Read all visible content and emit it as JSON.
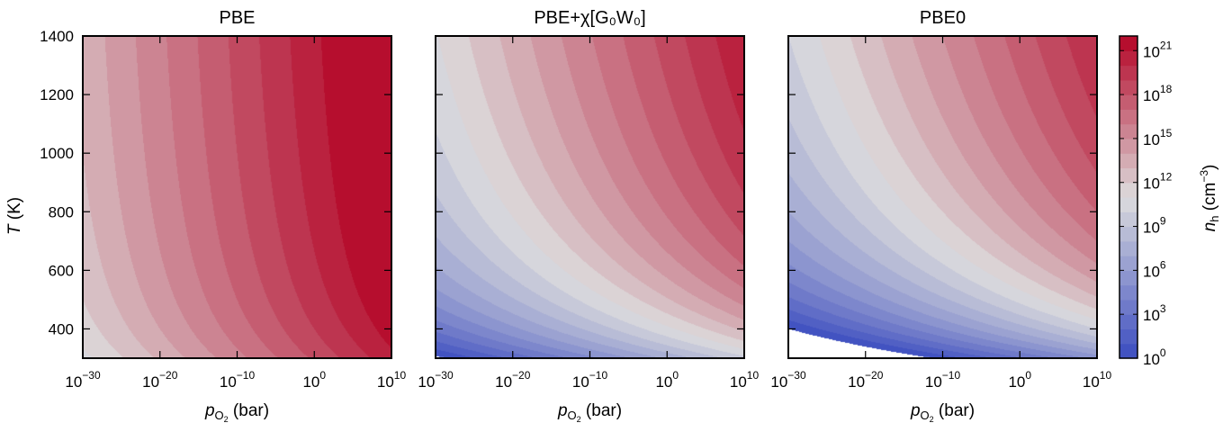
{
  "chart_data": {
    "type": "heatmap",
    "shared_y_axis": {
      "label": "T (K)",
      "label_var": "T",
      "label_unit": "(K)",
      "range": [
        300,
        1400
      ],
      "ticks": [
        400,
        600,
        800,
        1000,
        1200,
        1400
      ]
    },
    "shared_x_axis": {
      "label": "p_O2 (bar)",
      "label_var": "p",
      "label_sub": "O",
      "label_subsub": "2",
      "label_unit": "(bar)",
      "scale": "log",
      "range_exponent": [
        -30,
        10
      ],
      "tick_exponents": [
        -30,
        -20,
        -10,
        0,
        10
      ],
      "tick_base": "10"
    },
    "colorbar": {
      "label": "n_h (cm^-3)",
      "label_var": "n",
      "label_sub": "h",
      "label_unit_pre": "(cm",
      "label_unit_exp": "−3",
      "label_unit_post": ")",
      "scale": "log",
      "tick_base": "10",
      "tick_exponents": [
        0,
        3,
        6,
        9,
        12,
        15,
        18,
        21
      ],
      "range_exponent": [
        0,
        22
      ],
      "colormap": "coolwarm",
      "colors": [
        "#3b4cc0",
        "#dddddd",
        "#b40426"
      ]
    },
    "panels": [
      {
        "title": "PBE",
        "model": {
          "a": 21.5,
          "b": 0.25,
          "c": 1000
        }
      },
      {
        "title": "PBE+χ[G₀W₀]",
        "model": {
          "a": 21.5,
          "b": 0.25,
          "c": 4300
        }
      },
      {
        "title": "PBE0",
        "model": {
          "a": 21.5,
          "b": 0.25,
          "c": 5600
        }
      }
    ]
  }
}
